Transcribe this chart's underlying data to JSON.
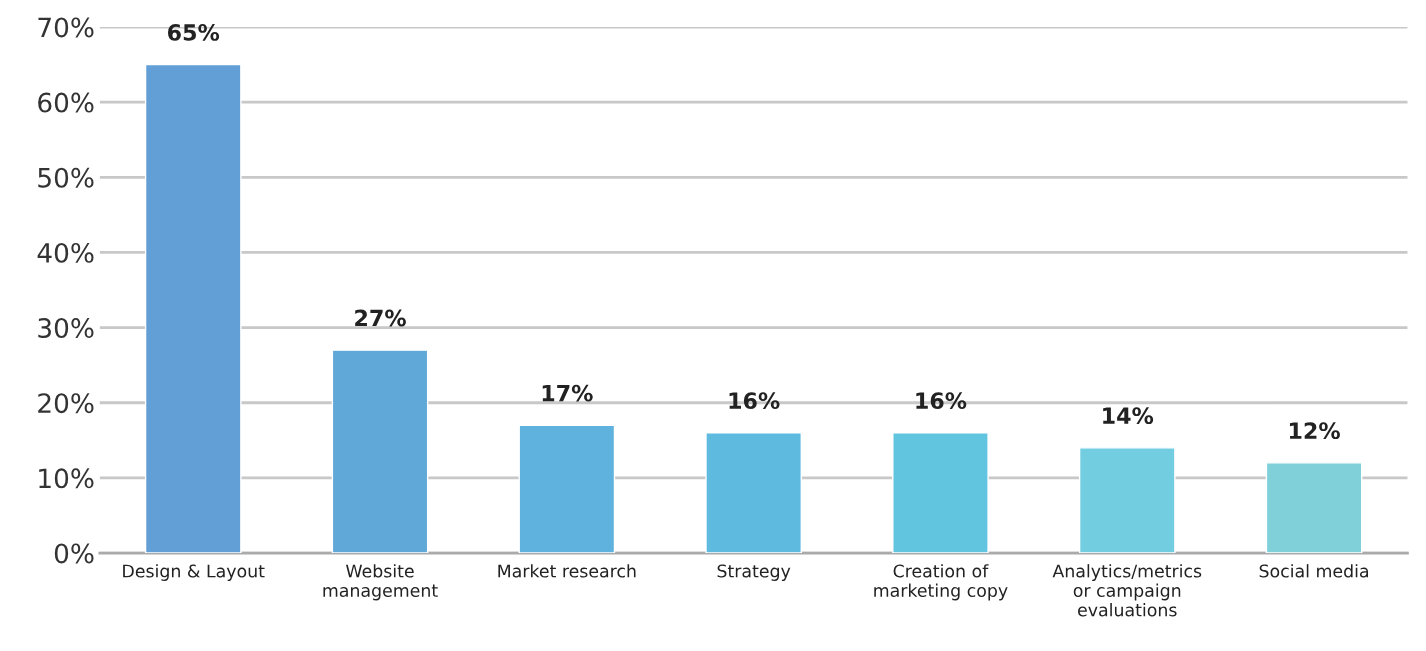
{
  "chart_data": {
    "type": "bar",
    "categories": [
      "Design & Layout",
      "Website\nmanagement",
      "Market research",
      "Strategy",
      "Creation of\nmarketing copy",
      "Analytics/metrics\nor campaign\nevaluations",
      "Social media"
    ],
    "values": [
      65,
      27,
      17,
      16,
      16,
      14,
      12
    ],
    "colors": [
      "#629fd6",
      "#60a8d8",
      "#5eb2dd",
      "#5ebadf",
      "#62c5e0",
      "#72cde0",
      "#80d0d9"
    ],
    "ylim": [
      0,
      70
    ],
    "yticks": [
      {
        "value": 0,
        "label": "0%"
      },
      {
        "value": 10,
        "label": "10%"
      },
      {
        "value": 20,
        "label": "20%"
      },
      {
        "value": 30,
        "label": "30%"
      },
      {
        "value": 40,
        "label": "40%"
      },
      {
        "value": 50,
        "label": "50%"
      },
      {
        "value": 60,
        "label": "60%"
      },
      {
        "value": 70,
        "label": "70%"
      }
    ],
    "grid": "y",
    "data_labels": true,
    "value_labels": [
      "65%",
      "27%",
      "17%",
      "16%",
      "16%",
      "14%",
      "12%"
    ]
  }
}
